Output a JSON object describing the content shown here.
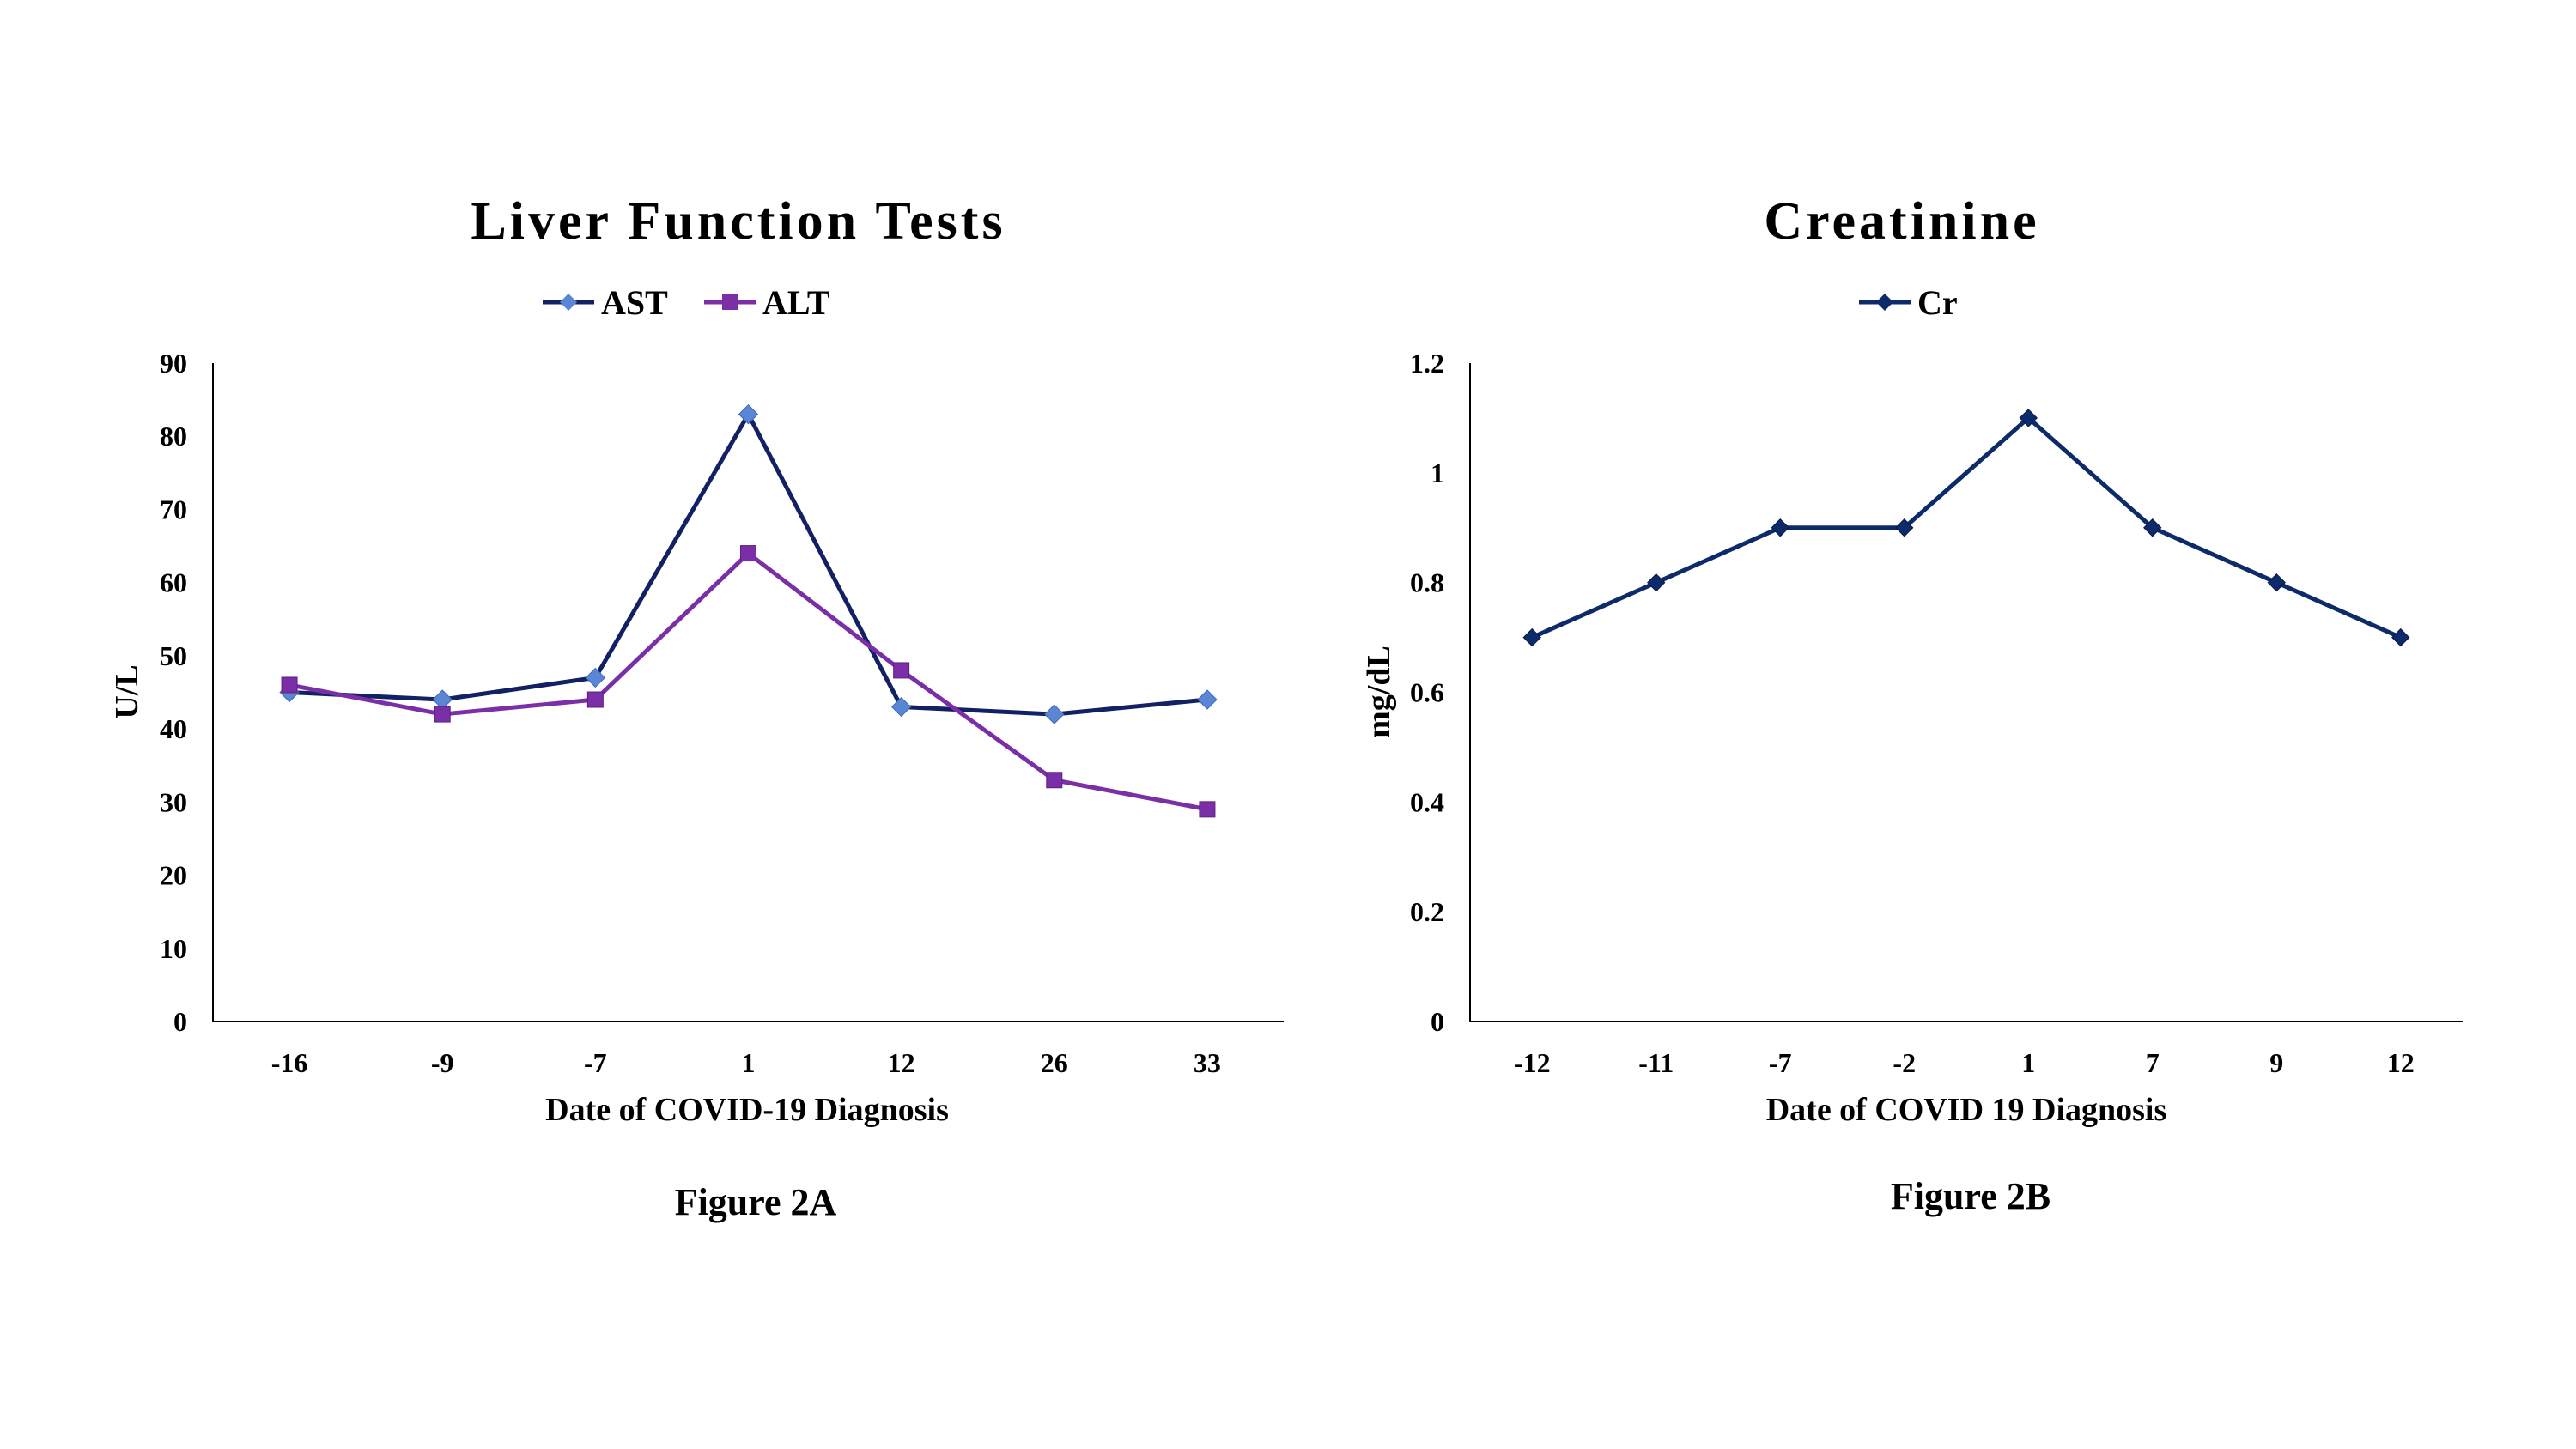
{
  "colors": {
    "ast": "#5B86D6",
    "alt": "#7A2FA6",
    "ast_line": "#122064",
    "cr": "#0D2A6B"
  },
  "chart_data": [
    {
      "type": "line",
      "title": "Liver Function Tests",
      "xlabel": "Date of COVID-19 Diagnosis",
      "ylabel": "U/L",
      "caption": "Figure 2A",
      "categories": [
        "-16",
        "-9",
        "-7",
        "1",
        "12",
        "26",
        "33"
      ],
      "ylim": [
        0,
        90
      ],
      "yticks": [
        "0",
        "10",
        "20",
        "30",
        "40",
        "50",
        "60",
        "70",
        "80",
        "90"
      ],
      "ytick_values": [
        0,
        10,
        20,
        30,
        40,
        50,
        60,
        70,
        80,
        90
      ],
      "series": [
        {
          "name": "AST",
          "marker": "diamond",
          "values": [
            45,
            44,
            47,
            83,
            43,
            42,
            44
          ]
        },
        {
          "name": "ALT",
          "marker": "square",
          "values": [
            46,
            42,
            44,
            64,
            48,
            33,
            29
          ]
        }
      ]
    },
    {
      "type": "line",
      "title": "Creatinine",
      "xlabel": "Date of COVID 19 Diagnosis",
      "ylabel": "mg/dL",
      "caption": "Figure 2B",
      "categories": [
        "-12",
        "-11",
        "-7",
        "-2",
        "1",
        "7",
        "9",
        "12"
      ],
      "ylim": [
        0,
        1.2
      ],
      "yticks": [
        "0",
        "0.2",
        "0.4",
        "0.6",
        "0.8",
        "1",
        "1.2"
      ],
      "ytick_values": [
        0,
        0.2,
        0.4,
        0.6,
        0.8,
        1,
        1.2
      ],
      "series": [
        {
          "name": "Cr",
          "marker": "diamond",
          "values": [
            0.7,
            0.8,
            0.9,
            0.9,
            1.1,
            0.9,
            0.8,
            0.7
          ]
        }
      ]
    }
  ]
}
